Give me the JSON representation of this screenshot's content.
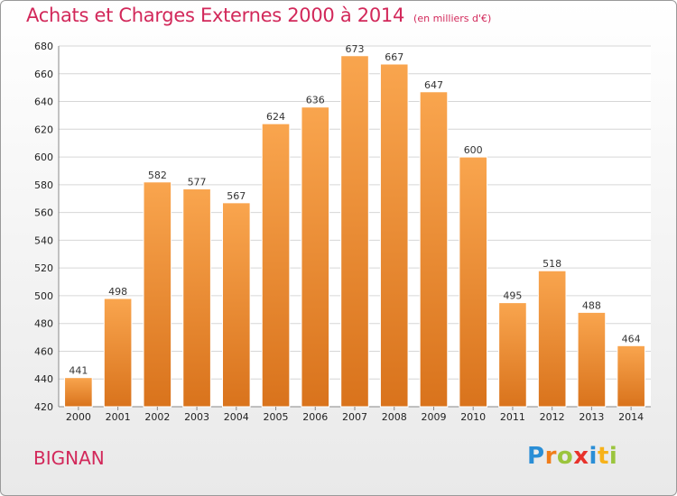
{
  "header": {
    "title": "Achats et Charges Externes 2000 à 2014",
    "subtitle": "(en milliers d'€)"
  },
  "commune": "BIGNAN",
  "logo": {
    "letters": [
      "P",
      "r",
      "o",
      "x",
      "i",
      "t",
      "i"
    ],
    "colors": [
      "#2a8ed6",
      "#f07d1a",
      "#9bc53d",
      "#e8322b",
      "#2a8ed6",
      "#f7b21a",
      "#9bc53d"
    ]
  },
  "chart_data": {
    "type": "bar",
    "title": "Achats et Charges Externes 2000 à 2014",
    "subtitle": "(en milliers d'€)",
    "categories": [
      "2000",
      "2001",
      "2002",
      "2003",
      "2004",
      "2005",
      "2006",
      "2007",
      "2008",
      "2009",
      "2010",
      "2011",
      "2012",
      "2013",
      "2014"
    ],
    "values": [
      441,
      498,
      582,
      577,
      567,
      624,
      636,
      673,
      667,
      647,
      600,
      495,
      518,
      488,
      464
    ],
    "ylim": [
      420,
      680
    ],
    "yticks": [
      420,
      440,
      460,
      480,
      500,
      520,
      540,
      560,
      580,
      600,
      620,
      640,
      660,
      680
    ],
    "grid": true,
    "bar_color": "#f08c32",
    "xlabel": "",
    "ylabel": ""
  }
}
